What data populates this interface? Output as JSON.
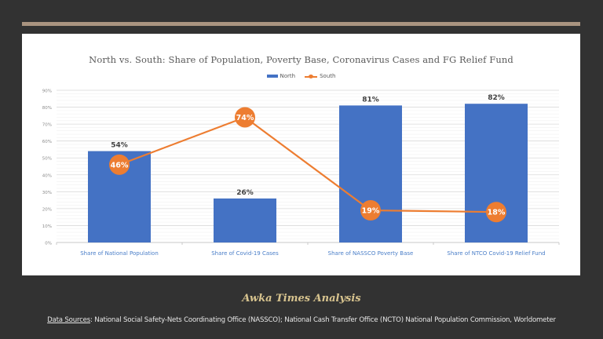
{
  "colors": {
    "background": "#323232",
    "accent": "#a99480",
    "north": "#4472c4",
    "south": "#ed7d31",
    "footer_title": "#d8c48f"
  },
  "chart_data": {
    "type": "bar+line",
    "title": "North vs. South: Share of Population, Poverty Base, Coronavirus Cases and FG Relief Fund",
    "categories": [
      "Share of National Population",
      "Share of Covid-19 Cases",
      "Share of NASSCO Poverty Base",
      "Share of NTCO Covid-19 Relief Fund"
    ],
    "series": [
      {
        "name": "North",
        "type": "bar",
        "values": [
          54,
          26,
          81,
          82
        ],
        "labels": [
          "54%",
          "26%",
          "81%",
          "82%"
        ]
      },
      {
        "name": "South",
        "type": "line",
        "values": [
          46,
          74,
          19,
          18
        ],
        "labels": [
          "46%",
          "74%",
          "19%",
          "18%"
        ]
      }
    ],
    "ylim": [
      0,
      90
    ],
    "yticks": [
      "0%",
      "10%",
      "20%",
      "30%",
      "40%",
      "50%",
      "60%",
      "70%",
      "80%",
      "90%"
    ],
    "ytick_values": [
      0,
      10,
      20,
      30,
      40,
      50,
      60,
      70,
      80,
      90
    ],
    "xlabel": "",
    "ylabel": "",
    "grid": true,
    "legend": "top-center"
  },
  "footer": {
    "title": "Awka Times Analysis",
    "sources_label": "Data Sources",
    "sources_text": ": National Social Safety-Nets Coordinating Office (NASSCO); National Cash Transfer Office (NCTO) National Population Commission, Worldometer"
  }
}
